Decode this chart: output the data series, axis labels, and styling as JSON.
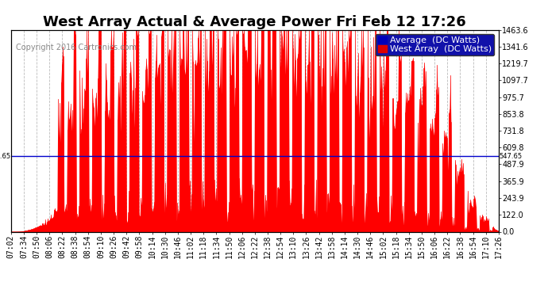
{
  "title": "West Array Actual & Average Power Fri Feb 12 17:26",
  "copyright": "Copyright 2016 Cartronics.com",
  "legend_labels": [
    "Average  (DC Watts)",
    "West Array  (DC Watts)"
  ],
  "legend_colors": [
    "#0000bb",
    "#dd0000"
  ],
  "ylabel_right": [
    "1463.6",
    "1341.6",
    "1219.7",
    "1097.7",
    "975.7",
    "853.8",
    "731.8",
    "609.8",
    "487.9",
    "365.9",
    "243.9",
    "122.0",
    "0.0"
  ],
  "ytick_values": [
    1463.6,
    1341.6,
    1219.7,
    1097.7,
    975.7,
    853.8,
    731.8,
    609.8,
    487.9,
    365.9,
    243.9,
    122.0,
    0.0
  ],
  "ymax": 1463.6,
  "ymin": 0.0,
  "hline_value": 547.65,
  "hline_label": "547.65",
  "background_color": "#ffffff",
  "plot_bg_color": "#ffffff",
  "grid_color": "#bbbbbb",
  "west_array_color": "#ff0000",
  "average_color": "#0000cc",
  "xtick_labels": [
    "07:02",
    "07:34",
    "07:50",
    "08:06",
    "08:22",
    "08:38",
    "08:54",
    "09:10",
    "09:26",
    "09:42",
    "09:58",
    "10:14",
    "10:30",
    "10:46",
    "11:02",
    "11:18",
    "11:34",
    "11:50",
    "12:06",
    "12:22",
    "12:38",
    "12:54",
    "13:10",
    "13:26",
    "13:42",
    "13:58",
    "14:14",
    "14:30",
    "14:46",
    "15:02",
    "15:18",
    "15:34",
    "15:50",
    "16:06",
    "16:22",
    "16:38",
    "16:54",
    "17:10",
    "17:26"
  ],
  "title_fontsize": 13,
  "tick_fontsize": 7,
  "copyright_fontsize": 7,
  "legend_fontsize": 8
}
